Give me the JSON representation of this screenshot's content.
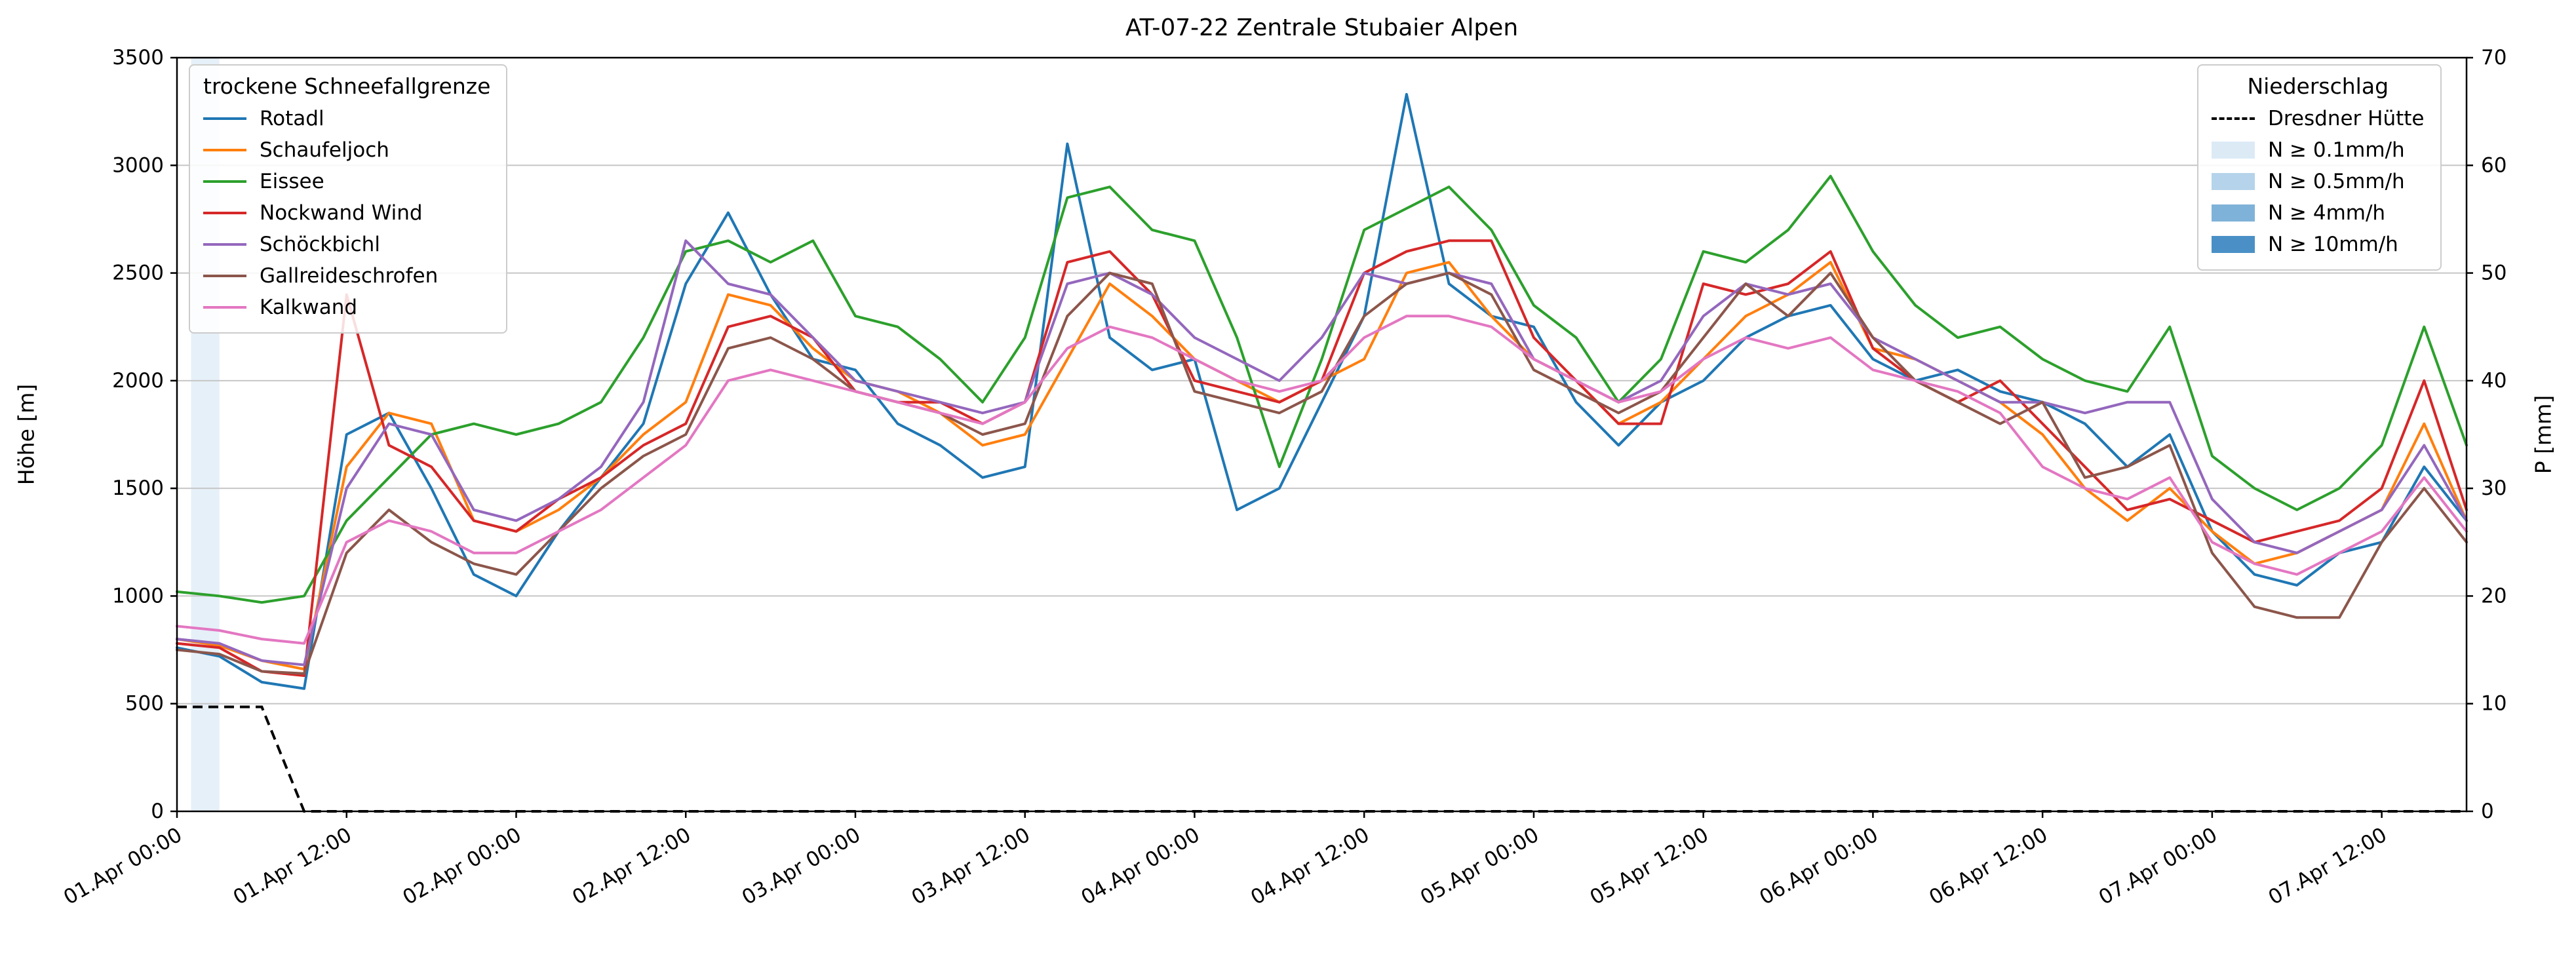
{
  "title": "AT-07-22 Zentrale Stubaier Alpen",
  "axes": {
    "y_left": {
      "label": "Höhe [m]",
      "min": 0,
      "max": 3500,
      "ticks": [
        0,
        500,
        1000,
        1500,
        2000,
        2500,
        3000,
        3500
      ]
    },
    "y_right": {
      "label": "P [mm]",
      "min": 0,
      "max": 70,
      "ticks": [
        0,
        10,
        20,
        30,
        40,
        50,
        60,
        70
      ]
    },
    "x": {
      "tick_hours": [
        0,
        12,
        24,
        36,
        48,
        60,
        72,
        84,
        96,
        108,
        120,
        132,
        144,
        156
      ],
      "tick_labels": [
        "01.Apr 00:00",
        "01.Apr 12:00",
        "02.Apr 00:00",
        "02.Apr 12:00",
        "03.Apr 00:00",
        "03.Apr 12:00",
        "04.Apr 00:00",
        "04.Apr 12:00",
        "05.Apr 00:00",
        "05.Apr 12:00",
        "06.Apr 00:00",
        "06.Apr 12:00",
        "07.Apr 00:00",
        "07.Apr 12:00"
      ],
      "domain_hours": [
        0,
        162
      ]
    }
  },
  "legend_left": {
    "title": "trockene Schneefallgrenze",
    "entries": [
      {
        "label": "Rotadl",
        "style": "line",
        "color": "#1f77b4"
      },
      {
        "label": "Schaufeljoch",
        "style": "line",
        "color": "#ff7f0e"
      },
      {
        "label": "Eissee",
        "style": "line",
        "color": "#2ca02c"
      },
      {
        "label": "Nockwand Wind",
        "style": "line",
        "color": "#d62728"
      },
      {
        "label": "Schöckbichl",
        "style": "line",
        "color": "#9467bd"
      },
      {
        "label": "Gallreideschrofen",
        "style": "line",
        "color": "#8c564b"
      },
      {
        "label": "Kalkwand",
        "style": "line",
        "color": "#e377c2"
      }
    ]
  },
  "legend_right": {
    "title": "Niederschlag",
    "entries": [
      {
        "label": "Dresdner Hütte",
        "style": "dashed",
        "color": "#000000"
      },
      {
        "label": "N ≥ 0.1mm/h",
        "style": "patch",
        "color": "#dceaf6"
      },
      {
        "label": "N ≥ 0.5mm/h",
        "style": "patch",
        "color": "#b5d3ea"
      },
      {
        "label": "N ≥ 4mm/h",
        "style": "patch",
        "color": "#7fb2d9"
      },
      {
        "label": "N ≥ 10mm/h",
        "style": "patch",
        "color": "#4a90c6"
      }
    ]
  },
  "chart_data": {
    "type": "line",
    "title": "AT-07-22 Zentrale Stubaier Alpen",
    "xlabel": "",
    "ylabel_left": "Höhe [m]",
    "ylabel_right": "P [mm]",
    "x_start_label": "01.Apr 00:00",
    "x_unit": "hours since 01.Apr 00:00",
    "x_hours": [
      0,
      3,
      6,
      9,
      12,
      15,
      18,
      21,
      24,
      27,
      30,
      33,
      36,
      39,
      42,
      45,
      48,
      51,
      54,
      57,
      60,
      63,
      66,
      69,
      72,
      75,
      78,
      81,
      84,
      87,
      90,
      93,
      96,
      99,
      102,
      105,
      108,
      111,
      114,
      117,
      120,
      123,
      126,
      129,
      132,
      135,
      138,
      141,
      144,
      147,
      150,
      153,
      156,
      159,
      162
    ],
    "ylim_left": [
      0,
      3500
    ],
    "ylim_right": [
      0,
      70
    ],
    "grid": "horizontal",
    "series": [
      {
        "name": "Rotadl",
        "color": "#1f77b4",
        "axis": "left",
        "values": [
          760,
          720,
          600,
          570,
          1750,
          1850,
          1500,
          1100,
          1000,
          1300,
          1550,
          1800,
          2450,
          2780,
          2400,
          2100,
          2050,
          1800,
          1700,
          1550,
          1600,
          3100,
          2200,
          2050,
          2100,
          1400,
          1500,
          1900,
          2300,
          3330,
          2450,
          2300,
          2250,
          1900,
          1700,
          1900,
          2000,
          2200,
          2300,
          2350,
          2100,
          2000,
          2050,
          1950,
          1900,
          1800,
          1600,
          1750,
          1300,
          1100,
          1050,
          1200,
          1250,
          1600,
          1350
        ]
      },
      {
        "name": "Schaufeljoch",
        "color": "#ff7f0e",
        "axis": "left",
        "values": [
          800,
          770,
          700,
          660,
          1600,
          1850,
          1800,
          1350,
          1300,
          1400,
          1550,
          1750,
          1900,
          2400,
          2350,
          2150,
          2000,
          1950,
          1850,
          1700,
          1750,
          2100,
          2450,
          2300,
          2100,
          2000,
          1900,
          2000,
          2100,
          2500,
          2550,
          2300,
          2100,
          2000,
          1800,
          1900,
          2100,
          2300,
          2400,
          2550,
          2150,
          2100,
          2000,
          1900,
          1750,
          1500,
          1350,
          1500,
          1300,
          1150,
          1200,
          1300,
          1400,
          1800,
          1350
        ]
      },
      {
        "name": "Eissee",
        "color": "#2ca02c",
        "axis": "left",
        "values": [
          1020,
          1000,
          970,
          1000,
          1350,
          1550,
          1750,
          1800,
          1750,
          1800,
          1900,
          2200,
          2600,
          2650,
          2550,
          2650,
          2300,
          2250,
          2100,
          1900,
          2200,
          2850,
          2900,
          2700,
          2650,
          2200,
          1600,
          2100,
          2700,
          2800,
          2900,
          2700,
          2350,
          2200,
          1900,
          2100,
          2600,
          2550,
          2700,
          2950,
          2600,
          2350,
          2200,
          2250,
          2100,
          2000,
          1950,
          2250,
          1650,
          1500,
          1400,
          1500,
          1700,
          2250,
          1700
        ]
      },
      {
        "name": "Nockwand Wind",
        "color": "#d62728",
        "axis": "left",
        "values": [
          780,
          760,
          650,
          630,
          2400,
          1700,
          1600,
          1350,
          1300,
          1450,
          1550,
          1700,
          1800,
          2250,
          2300,
          2200,
          1950,
          1900,
          1900,
          1800,
          1900,
          2550,
          2600,
          2400,
          2000,
          1950,
          1900,
          2000,
          2500,
          2600,
          2650,
          2650,
          2200,
          2000,
          1800,
          1800,
          2450,
          2400,
          2450,
          2600,
          2150,
          2000,
          1900,
          2000,
          1800,
          1600,
          1400,
          1450,
          1350,
          1250,
          1300,
          1350,
          1500,
          2000,
          1400
        ]
      },
      {
        "name": "Schöckbichl",
        "color": "#9467bd",
        "axis": "left",
        "values": [
          800,
          780,
          700,
          680,
          1500,
          1800,
          1750,
          1400,
          1350,
          1450,
          1600,
          1900,
          2650,
          2450,
          2400,
          2200,
          2000,
          1950,
          1900,
          1850,
          1900,
          2450,
          2500,
          2400,
          2200,
          2100,
          2000,
          2200,
          2500,
          2450,
          2500,
          2450,
          2100,
          2000,
          1900,
          2000,
          2300,
          2450,
          2400,
          2450,
          2200,
          2100,
          2000,
          1900,
          1900,
          1850,
          1900,
          1900,
          1450,
          1250,
          1200,
          1300,
          1400,
          1700,
          1350
        ]
      },
      {
        "name": "Gallreideschrofen",
        "color": "#8c564b",
        "axis": "left",
        "values": [
          750,
          730,
          650,
          640,
          1200,
          1400,
          1250,
          1150,
          1100,
          1300,
          1500,
          1650,
          1750,
          2150,
          2200,
          2100,
          1950,
          1900,
          1850,
          1750,
          1800,
          2300,
          2500,
          2450,
          1950,
          1900,
          1850,
          1950,
          2300,
          2450,
          2500,
          2400,
          2050,
          1950,
          1850,
          1950,
          2200,
          2450,
          2300,
          2500,
          2200,
          2000,
          1900,
          1800,
          1900,
          1550,
          1600,
          1700,
          1200,
          950,
          900,
          900,
          1250,
          1500,
          1250
        ]
      },
      {
        "name": "Kalkwand",
        "color": "#e377c2",
        "axis": "left",
        "values": [
          860,
          840,
          800,
          780,
          1250,
          1350,
          1300,
          1200,
          1200,
          1300,
          1400,
          1550,
          1700,
          2000,
          2050,
          2000,
          1950,
          1900,
          1850,
          1800,
          1900,
          2150,
          2250,
          2200,
          2100,
          2000,
          1950,
          2000,
          2200,
          2300,
          2300,
          2250,
          2100,
          2000,
          1900,
          1950,
          2100,
          2200,
          2150,
          2200,
          2050,
          2000,
          1950,
          1850,
          1600,
          1500,
          1450,
          1550,
          1250,
          1150,
          1100,
          1200,
          1300,
          1550,
          1300
        ]
      }
    ],
    "precip_line": {
      "name": "Dresdner Hütte",
      "color": "#000000",
      "style": "dashed",
      "axis": "right",
      "values": [
        9.7,
        9.7,
        9.7,
        0,
        0,
        0,
        0,
        0,
        0,
        0,
        0,
        0,
        0,
        0,
        0,
        0,
        0,
        0,
        0,
        0,
        0,
        0,
        0,
        0,
        0,
        0,
        0,
        0,
        0,
        0,
        0,
        0,
        0,
        0,
        0,
        0,
        0,
        0,
        0,
        0,
        0,
        0,
        0,
        0,
        0,
        0,
        0,
        0,
        0,
        0,
        0,
        0,
        0,
        0,
        0
      ]
    },
    "precip_bands": [
      {
        "start_hour": 1,
        "end_hour": 3,
        "intensity": "N ≥ 0.1mm/h",
        "color": "#dceaf6"
      }
    ]
  }
}
